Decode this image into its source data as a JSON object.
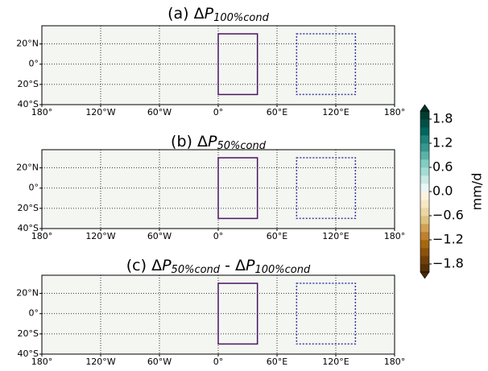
{
  "chart_data": [
    {
      "type": "map",
      "title": [
        "(a) Δ",
        "P",
        "100%cond"
      ],
      "xlim": [
        -180,
        180
      ],
      "ylim": [
        -40,
        38
      ],
      "xticks": [
        {
          "value": -180,
          "label": "180°"
        },
        {
          "value": -120,
          "label": "120°W"
        },
        {
          "value": -60,
          "label": "60°W"
        },
        {
          "value": 0,
          "label": "0°"
        },
        {
          "value": 60,
          "label": "60°E"
        },
        {
          "value": 120,
          "label": "120°E"
        },
        {
          "value": 180,
          "label": "180°"
        }
      ],
      "yticks": [
        {
          "value": -40,
          "label": "40°S"
        },
        {
          "value": -20,
          "label": "20°S"
        },
        {
          "value": 0,
          "label": "0°"
        },
        {
          "value": 20,
          "label": "20°N"
        }
      ],
      "regions": [
        {
          "lon": [
            0,
            40
          ],
          "lat": [
            -30,
            30
          ],
          "color": "#4b1363",
          "style": "solid"
        },
        {
          "lon": [
            80,
            140
          ],
          "lat": [
            -30,
            30
          ],
          "color": "#3b3ba0",
          "style": "dotted"
        }
      ]
    },
    {
      "type": "map",
      "title": [
        "(b) Δ",
        "P",
        "50%cond"
      ],
      "xlim": [
        -180,
        180
      ],
      "ylim": [
        -40,
        38
      ],
      "xticks": [
        {
          "value": -180,
          "label": "180°"
        },
        {
          "value": -120,
          "label": "120°W"
        },
        {
          "value": -60,
          "label": "60°W"
        },
        {
          "value": 0,
          "label": "0°"
        },
        {
          "value": 60,
          "label": "60°E"
        },
        {
          "value": 120,
          "label": "120°E"
        },
        {
          "value": 180,
          "label": "180°"
        }
      ],
      "yticks": [
        {
          "value": -40,
          "label": "40°S"
        },
        {
          "value": -20,
          "label": "20°S"
        },
        {
          "value": 0,
          "label": "0°"
        },
        {
          "value": 20,
          "label": "20°N"
        }
      ],
      "regions": [
        {
          "lon": [
            0,
            40
          ],
          "lat": [
            -30,
            30
          ],
          "color": "#4b1363",
          "style": "solid"
        },
        {
          "lon": [
            80,
            140
          ],
          "lat": [
            -30,
            30
          ],
          "color": "#3b3ba0",
          "style": "dotted"
        }
      ]
    },
    {
      "type": "map",
      "title": [
        "(c) Δ",
        "P",
        "50%cond",
        " - Δ",
        "P",
        "100%cond"
      ],
      "xlim": [
        -180,
        180
      ],
      "ylim": [
        -40,
        38
      ],
      "xticks": [
        {
          "value": -180,
          "label": "180°"
        },
        {
          "value": -120,
          "label": "120°W"
        },
        {
          "value": -60,
          "label": "60°W"
        },
        {
          "value": 0,
          "label": "0°"
        },
        {
          "value": 60,
          "label": "60°E"
        },
        {
          "value": 120,
          "label": "120°E"
        },
        {
          "value": 180,
          "label": "180°"
        }
      ],
      "yticks": [
        {
          "value": -40,
          "label": "40°S"
        },
        {
          "value": -20,
          "label": "20°S"
        },
        {
          "value": 0,
          "label": "0°"
        },
        {
          "value": 20,
          "label": "20°N"
        }
      ],
      "regions": [
        {
          "lon": [
            0,
            40
          ],
          "lat": [
            -30,
            30
          ],
          "color": "#4b1363",
          "style": "solid"
        },
        {
          "lon": [
            80,
            140
          ],
          "lat": [
            -30,
            30
          ],
          "color": "#3b3ba0",
          "style": "dotted"
        }
      ]
    }
  ],
  "colorbar": {
    "label": "mm/d",
    "clim": [
      -2,
      2
    ],
    "ticks": [
      {
        "value": -1.8,
        "label": "−1.8"
      },
      {
        "value": -1.2,
        "label": "−1.2"
      },
      {
        "value": -0.6,
        "label": "−0.6"
      },
      {
        "value": 0,
        "label": "0.0"
      },
      0.6,
      1.2,
      1.8
    ],
    "colors": [
      "#543005",
      "#6f3f07",
      "#8c510a",
      "#a6670f",
      "#bf812d",
      "#d0a054",
      "#dfc27d",
      "#ebd7a5",
      "#f6e8c3",
      "#fbf3e1",
      "#eaf6f4",
      "#c7eae5",
      "#a3dcd3",
      "#80cdc1",
      "#5ab2a8",
      "#35978f",
      "#1f8279",
      "#01665e",
      "#024f47",
      "#003c30"
    ],
    "extend_colors": [
      "#4a2a04",
      "#00332a"
    ]
  }
}
